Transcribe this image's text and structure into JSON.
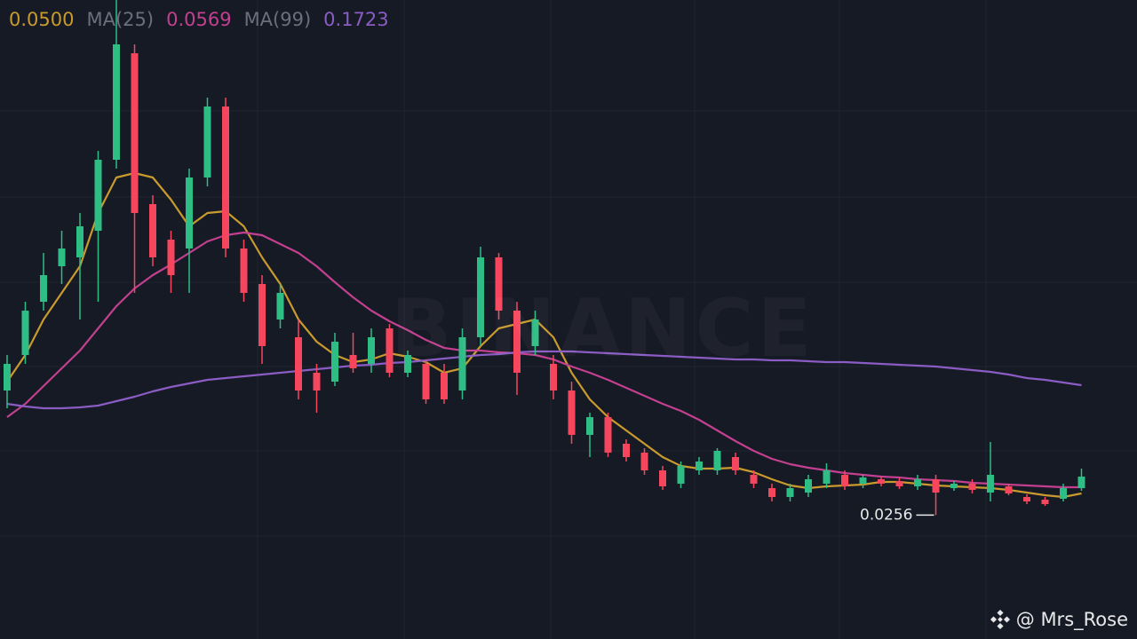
{
  "watermark": "BINANCE",
  "credit": "@ Mrs_Rose",
  "chart_data": {
    "type": "candlestick",
    "ylim": [
      -0.114,
      0.606
    ],
    "up_color": "#2ebd85",
    "down_color": "#f6465d",
    "open": [
      0.166,
      0.206,
      0.266,
      0.306,
      0.316,
      0.346,
      0.426,
      0.546,
      0.376,
      0.336,
      0.326,
      0.406,
      0.486,
      0.326,
      0.286,
      0.246,
      0.226,
      0.186,
      0.176,
      0.206,
      0.196,
      0.236,
      0.186,
      0.196,
      0.186,
      0.166,
      0.226,
      0.316,
      0.256,
      0.216,
      0.196,
      0.166,
      0.116,
      0.136,
      0.106,
      0.096,
      0.076,
      0.061,
      0.076,
      0.076,
      0.091,
      0.071,
      0.056,
      0.046,
      0.051,
      0.061,
      0.071,
      0.061,
      0.066,
      0.064,
      0.058,
      0.066,
      0.056,
      0.061,
      0.051,
      0.058,
      0.046,
      0.043,
      0.044,
      0.056
    ],
    "high": [
      0.206,
      0.266,
      0.321,
      0.346,
      0.366,
      0.436,
      0.606,
      0.556,
      0.386,
      0.346,
      0.416,
      0.496,
      0.496,
      0.336,
      0.296,
      0.286,
      0.246,
      0.196,
      0.231,
      0.231,
      0.236,
      0.241,
      0.211,
      0.201,
      0.196,
      0.236,
      0.328,
      0.321,
      0.266,
      0.256,
      0.206,
      0.176,
      0.141,
      0.141,
      0.111,
      0.101,
      0.081,
      0.086,
      0.091,
      0.101,
      0.096,
      0.076,
      0.061,
      0.061,
      0.071,
      0.084,
      0.076,
      0.071,
      0.069,
      0.068,
      0.071,
      0.071,
      0.064,
      0.066,
      0.108,
      0.061,
      0.049,
      0.046,
      0.061,
      0.078
    ],
    "low": [
      0.146,
      0.196,
      0.256,
      0.286,
      0.246,
      0.266,
      0.416,
      0.276,
      0.306,
      0.276,
      0.276,
      0.396,
      0.316,
      0.266,
      0.196,
      0.236,
      0.156,
      0.141,
      0.171,
      0.186,
      0.186,
      0.181,
      0.181,
      0.151,
      0.151,
      0.156,
      0.216,
      0.246,
      0.161,
      0.206,
      0.156,
      0.106,
      0.091,
      0.091,
      0.086,
      0.071,
      0.054,
      0.056,
      0.071,
      0.071,
      0.071,
      0.056,
      0.041,
      0.041,
      0.046,
      0.056,
      0.054,
      0.056,
      0.058,
      0.055,
      0.054,
      0.0256,
      0.053,
      0.05,
      0.041,
      0.048,
      0.038,
      0.036,
      0.041,
      0.053
    ],
    "close": [
      0.196,
      0.256,
      0.296,
      0.326,
      0.351,
      0.426,
      0.556,
      0.366,
      0.316,
      0.296,
      0.406,
      0.486,
      0.326,
      0.276,
      0.216,
      0.276,
      0.166,
      0.166,
      0.221,
      0.191,
      0.226,
      0.186,
      0.206,
      0.156,
      0.156,
      0.226,
      0.316,
      0.256,
      0.186,
      0.246,
      0.166,
      0.116,
      0.136,
      0.096,
      0.091,
      0.076,
      0.058,
      0.081,
      0.086,
      0.098,
      0.076,
      0.061,
      0.046,
      0.056,
      0.066,
      0.076,
      0.058,
      0.068,
      0.061,
      0.058,
      0.066,
      0.051,
      0.061,
      0.054,
      0.071,
      0.05,
      0.041,
      0.038,
      0.056,
      0.069
    ],
    "low_label": "0.0256",
    "low_index": 51,
    "series": [
      {
        "color": "#c99a2e",
        "last_label": "0.0500",
        "values": [
          0.176,
          0.206,
          0.246,
          0.276,
          0.306,
          0.366,
          0.406,
          0.411,
          0.406,
          0.381,
          0.351,
          0.366,
          0.368,
          0.351,
          0.316,
          0.286,
          0.246,
          0.221,
          0.206,
          0.198,
          0.201,
          0.208,
          0.204,
          0.198,
          0.186,
          0.191,
          0.216,
          0.236,
          0.241,
          0.246,
          0.226,
          0.186,
          0.156,
          0.136,
          0.121,
          0.106,
          0.091,
          0.081,
          0.078,
          0.078,
          0.079,
          0.074,
          0.066,
          0.059,
          0.056,
          0.058,
          0.059,
          0.06,
          0.063,
          0.063,
          0.061,
          0.059,
          0.058,
          0.057,
          0.056,
          0.054,
          0.051,
          0.048,
          0.046,
          0.05
        ]
      },
      {
        "name": "MA(25)",
        "color": "#c2408f",
        "last_label": "0.0569",
        "values": [
          0.136,
          0.151,
          0.171,
          0.191,
          0.211,
          0.236,
          0.261,
          0.281,
          0.296,
          0.308,
          0.321,
          0.334,
          0.341,
          0.344,
          0.341,
          0.331,
          0.321,
          0.306,
          0.288,
          0.271,
          0.256,
          0.244,
          0.234,
          0.223,
          0.214,
          0.211,
          0.211,
          0.209,
          0.208,
          0.206,
          0.201,
          0.193,
          0.186,
          0.178,
          0.169,
          0.16,
          0.151,
          0.143,
          0.133,
          0.121,
          0.109,
          0.098,
          0.089,
          0.083,
          0.079,
          0.076,
          0.073,
          0.071,
          0.069,
          0.068,
          0.066,
          0.065,
          0.064,
          0.062,
          0.061,
          0.06,
          0.059,
          0.058,
          0.057,
          0.057
        ]
      },
      {
        "name": "MA(99)",
        "color": "#8a5cc4",
        "last_label": "0.1723",
        "values": [
          0.151,
          0.148,
          0.146,
          0.146,
          0.147,
          0.149,
          0.154,
          0.159,
          0.165,
          0.17,
          0.174,
          0.178,
          0.18,
          0.182,
          0.184,
          0.186,
          0.188,
          0.19,
          0.192,
          0.194,
          0.195,
          0.197,
          0.198,
          0.2,
          0.202,
          0.204,
          0.206,
          0.207,
          0.209,
          0.21,
          0.21,
          0.21,
          0.209,
          0.208,
          0.207,
          0.206,
          0.205,
          0.204,
          0.203,
          0.202,
          0.201,
          0.201,
          0.2,
          0.2,
          0.199,
          0.198,
          0.198,
          0.197,
          0.196,
          0.195,
          0.194,
          0.193,
          0.191,
          0.189,
          0.187,
          0.184,
          0.18,
          0.178,
          0.175,
          0.172
        ]
      }
    ]
  }
}
